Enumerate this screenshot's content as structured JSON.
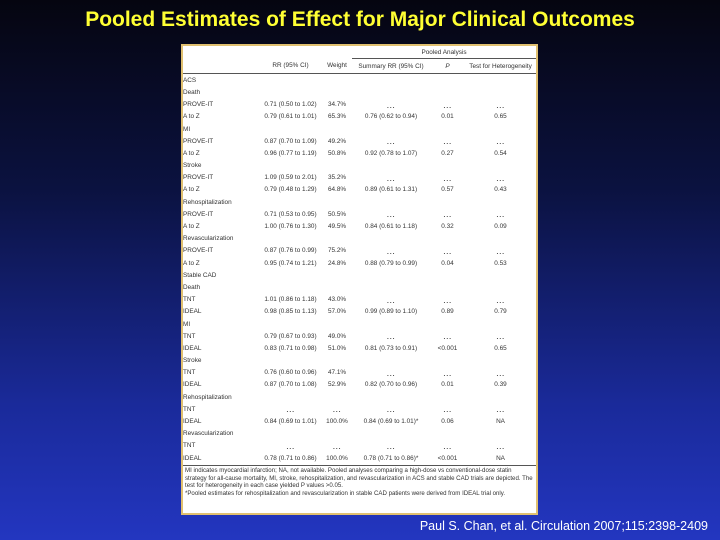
{
  "title": "Pooled Estimates of Effect for Major Clinical Outcomes",
  "citation": "Paul S. Chan, et al. Circulation 2007;115:2398-2409",
  "table": {
    "pooled_header": "Pooled Analysis",
    "columns": [
      "",
      "RR (95% CI)",
      "Weight",
      "Summary RR (95% CI)",
      "P",
      "Test for Heterogeneity"
    ],
    "rows": [
      {
        "level": 0,
        "label": "ACS",
        "cells": [
          "",
          "",
          "",
          "",
          ""
        ]
      },
      {
        "level": 1,
        "label": "Death",
        "cells": [
          "",
          "",
          "",
          "",
          ""
        ]
      },
      {
        "level": 2,
        "label": "PROVE-IT",
        "cells": [
          "0.71 (0.50 to 1.02)",
          "34.7%",
          "…",
          "…",
          "…"
        ]
      },
      {
        "level": 2,
        "label": "A to Z",
        "cells": [
          "0.79 (0.61 to 1.01)",
          "65.3%",
          "0.76 (0.62 to 0.94)",
          "0.01",
          "0.65"
        ]
      },
      {
        "level": 1,
        "label": "MI",
        "cells": [
          "",
          "",
          "",
          "",
          ""
        ]
      },
      {
        "level": 2,
        "label": "PROVE-IT",
        "cells": [
          "0.87 (0.70 to 1.09)",
          "49.2%",
          "…",
          "…",
          "…"
        ]
      },
      {
        "level": 2,
        "label": "A to Z",
        "cells": [
          "0.96 (0.77 to 1.19)",
          "50.8%",
          "0.92 (0.78 to 1.07)",
          "0.27",
          "0.54"
        ]
      },
      {
        "level": 1,
        "label": "Stroke",
        "cells": [
          "",
          "",
          "",
          "",
          ""
        ]
      },
      {
        "level": 2,
        "label": "PROVE-IT",
        "cells": [
          "1.09 (0.59 to 2.01)",
          "35.2%",
          "…",
          "…",
          "…"
        ]
      },
      {
        "level": 2,
        "label": "A to Z",
        "cells": [
          "0.79 (0.48 to 1.29)",
          "64.8%",
          "0.89 (0.61 to 1.31)",
          "0.57",
          "0.43"
        ]
      },
      {
        "level": 1,
        "label": "Rehospitalization",
        "cells": [
          "",
          "",
          "",
          "",
          ""
        ]
      },
      {
        "level": 2,
        "label": "PROVE-IT",
        "cells": [
          "0.71 (0.53 to 0.95)",
          "50.5%",
          "…",
          "…",
          "…"
        ]
      },
      {
        "level": 2,
        "label": "A to Z",
        "cells": [
          "1.00 (0.76 to 1.30)",
          "49.5%",
          "0.84 (0.61 to 1.18)",
          "0.32",
          "0.09"
        ]
      },
      {
        "level": 1,
        "label": "Revascularization",
        "cells": [
          "",
          "",
          "",
          "",
          ""
        ]
      },
      {
        "level": 2,
        "label": "PROVE-IT",
        "cells": [
          "0.87 (0.76 to 0.99)",
          "75.2%",
          "…",
          "…",
          "…"
        ]
      },
      {
        "level": 2,
        "label": "A to Z",
        "cells": [
          "0.95 (0.74 to 1.21)",
          "24.8%",
          "0.88 (0.79 to 0.99)",
          "0.04",
          "0.53"
        ]
      },
      {
        "level": 0,
        "label": "Stable CAD",
        "cells": [
          "",
          "",
          "",
          "",
          ""
        ]
      },
      {
        "level": 1,
        "label": "Death",
        "cells": [
          "",
          "",
          "",
          "",
          ""
        ]
      },
      {
        "level": 2,
        "label": "TNT",
        "cells": [
          "1.01 (0.86 to 1.18)",
          "43.0%",
          "…",
          "…",
          "…"
        ]
      },
      {
        "level": 2,
        "label": "IDEAL",
        "cells": [
          "0.98 (0.85 to 1.13)",
          "57.0%",
          "0.99 (0.89 to 1.10)",
          "0.89",
          "0.79"
        ]
      },
      {
        "level": 1,
        "label": "MI",
        "cells": [
          "",
          "",
          "",
          "",
          ""
        ]
      },
      {
        "level": 2,
        "label": "TNT",
        "cells": [
          "0.79 (0.67 to 0.93)",
          "49.0%",
          "…",
          "…",
          "…"
        ]
      },
      {
        "level": 2,
        "label": "IDEAL",
        "cells": [
          "0.83 (0.71 to 0.98)",
          "51.0%",
          "0.81 (0.73 to 0.91)",
          "<0.001",
          "0.65"
        ]
      },
      {
        "level": 1,
        "label": "Stroke",
        "cells": [
          "",
          "",
          "",
          "",
          ""
        ]
      },
      {
        "level": 2,
        "label": "TNT",
        "cells": [
          "0.76 (0.60 to 0.96)",
          "47.1%",
          "…",
          "…",
          "…"
        ]
      },
      {
        "level": 2,
        "label": "IDEAL",
        "cells": [
          "0.87 (0.70 to 1.08)",
          "52.9%",
          "0.82 (0.70 to 0.96)",
          "0.01",
          "0.39"
        ]
      },
      {
        "level": 1,
        "label": "Rehospitalization",
        "cells": [
          "",
          "",
          "",
          "",
          ""
        ]
      },
      {
        "level": 2,
        "label": "TNT",
        "cells": [
          "…",
          "…",
          "…",
          "…",
          "…"
        ]
      },
      {
        "level": 2,
        "label": "IDEAL",
        "cells": [
          "0.84 (0.69 to 1.01)",
          "100.0%",
          "0.84 (0.69 to 1.01)*",
          "0.06",
          "NA"
        ]
      },
      {
        "level": 1,
        "label": "Revascularization",
        "cells": [
          "",
          "",
          "",
          "",
          ""
        ]
      },
      {
        "level": 2,
        "label": "TNT",
        "cells": [
          "…",
          "…",
          "…",
          "…",
          "…"
        ]
      },
      {
        "level": 2,
        "label": "IDEAL",
        "cells": [
          "0.78 (0.71 to 0.86)",
          "100.0%",
          "0.78 (0.71 to 0.86)*",
          "<0.001",
          "NA"
        ]
      }
    ],
    "footnote_1": "MI indicates myocardial infarction; NA, not available. Pooled analyses comparing a high-dose vs conventional-dose statin strategy for all-cause mortality, MI, stroke, rehospitalization, and revascularization in ACS and stable CAD trials are depicted. The test for heterogeneity in each case yielded P values >0.05.",
    "footnote_2": "*Pooled estimates for rehospitalization and revascularization in stable CAD patients were derived from IDEAL trial only."
  }
}
